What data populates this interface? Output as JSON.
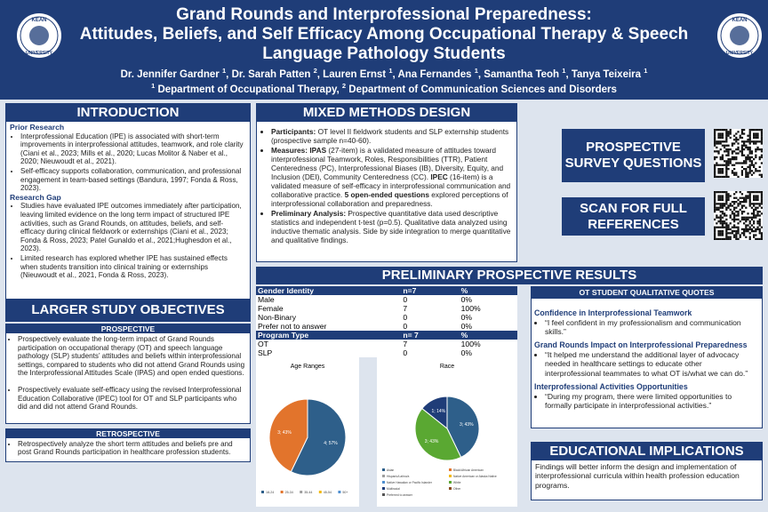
{
  "header": {
    "title_lines": [
      "Grand Rounds and Interprofessional Preparedness:",
      "Attitudes, Beliefs, and Self Efficacy Among Occupational Therapy & Speech",
      "Language Pathology Students"
    ],
    "authors": [
      {
        "name": "Dr. Jennifer Gardner",
        "aff": "1"
      },
      {
        "name": "Dr. Sarah Patten",
        "aff": "2"
      },
      {
        "name": "Lauren Ernst",
        "aff": "1"
      },
      {
        "name": "Ana Fernandes",
        "aff": "1"
      },
      {
        "name": "Samantha Teoh",
        "aff": "1"
      },
      {
        "name": "Tanya Teixeira",
        "aff": "1"
      }
    ],
    "departments": [
      {
        "num": "1",
        "name": "Department of Occupational Therapy"
      },
      {
        "num": "2",
        "name": "Department of Communication Sciences and Disorders"
      }
    ],
    "logo_top": "KEAN",
    "logo_bottom": "UNIVERSITY"
  },
  "introduction": {
    "title": "INTRODUCTION",
    "sections": [
      {
        "heading": "Prior Research",
        "bullets": [
          "Interprofessional Education (IPE) is associated with short-term improvements in interprofessional attitudes, teamwork, and role clarity (Ciani et al., 2023; Mills et al., 2020; Lucas Molitor & Naber et al., 2020; Nieuwoudt et al., 2021).",
          "Self-efficacy supports collaboration, communication, and professional engagement in team-based settings (Bandura, 1997; Fonda & Ross, 2023)."
        ]
      },
      {
        "heading": "Research Gap",
        "bullets": [
          "Studies have evaluated IPE outcomes immediately after participation, leaving limited evidence on the long term impact of structured IPE activities, such as Grand Rounds, on attitudes, beliefs, and self-efficacy during clinical fieldwork or externships (Ciani et al., 2023; Fonda & Ross, 2023;  Patel Gunaldo et al., 2021;Hughesdon et al., 2023).",
          "Limited research has explored whether IPE has sustained effects when students transition into clinical training or externships (Nieuwoudt et al., 2021, Fonda & Ross, 2023)."
        ]
      }
    ]
  },
  "objectives": {
    "title": "LARGER STUDY OBJECTIVES",
    "prospective_heading": "PROSPECTIVE",
    "prospective": [
      "Prospectively evaluate the long-term impact of Grand Rounds participation on occupational therapy (OT) and speech language pathology (SLP) students’ attitudes and beliefs within interprofessional settings, compared to students who did not attend Grand Rounds using the Interprofessional Attitudes Scale (IPAS) and open ended questions.",
      "Prospectively evaluate self-efficacy using the revised Interprofessional Education Collaborative (IPEC) tool for OT and SLP participants who did and did not attend Grand Rounds."
    ],
    "retrospective_heading": "RETROSPECTIVE",
    "retrospective": [
      "Retrospectively analyze the short term attitudes and beliefs pre and post Grand Rounds participation in healthcare profession students."
    ]
  },
  "methods": {
    "title": "MIXED METHODS DESIGN",
    "bullets": [
      [
        {
          "text": "Participants:",
          "bold": true
        },
        {
          "text": " OT level II fieldwork students and SLP externship students (prospective sample n=40-60)."
        }
      ],
      [
        {
          "text": "Measures: IPAS",
          "bold": true
        },
        {
          "text": " (27-item) is a validated measure of attitudes toward interprofessional Teamwork, Roles, Responsibilities (TTR), Patient Centeredness (PC), Interprofessional Biases (IB), Diversity, Equity, and Inclusion (DEI), Community Centeredness (CC). "
        },
        {
          "text": "IPEC",
          "bold": true
        },
        {
          "text": " (16-item) is a validated measure of self-efficacy in interprofessional communication and collaborative practice. "
        },
        {
          "text": "5 open-ended questions",
          "bold": true
        },
        {
          "text": " explored perceptions of interprofessional collaboration and preparedness."
        }
      ],
      [
        {
          "text": "Preliminary Analysis:",
          "bold": true
        },
        {
          "text": " Prospective quantitative data used descriptive statistics and independent t-test (p=0.5). Qualitative data analyzed using inductive thematic analysis. Side by side integration to merge quantitative and qualitative findings."
        }
      ]
    ]
  },
  "links": {
    "questions": "PROSPECTIVE SURVEY QUESTIONS",
    "references": "SCAN FOR FULL REFERENCES"
  },
  "results": {
    "title": "PRELIMINARY PROSPECTIVE RESULTS",
    "tables": [
      {
        "header": [
          "Gender Identity",
          "n=7",
          "%"
        ],
        "rows": [
          [
            "Male",
            "0",
            "0%"
          ],
          [
            "Female",
            "7",
            "100%"
          ],
          [
            "Non-Binary",
            "0",
            "0%"
          ],
          [
            "Prefer not to answer",
            "0",
            "0%"
          ]
        ]
      },
      {
        "header": [
          "Program Type",
          "n= 7",
          "%"
        ],
        "rows": [
          [
            "OT",
            "7",
            "100%"
          ],
          [
            "SLP",
            "0",
            "0%"
          ]
        ]
      }
    ]
  },
  "age_chart": {
    "type": "pie",
    "title": "Age Ranges",
    "categories": [
      "18-24",
      "25-34",
      "35-44",
      "45-54",
      "50+"
    ],
    "values": [
      4,
      3,
      0,
      0,
      0
    ],
    "value_labels": [
      "4; 57%",
      "3; 43%",
      null,
      null,
      null
    ],
    "colors": [
      "#2e5f8a",
      "#e2742c",
      "#9e9e9e",
      "#f2b90f",
      "#4f8fd0"
    ]
  },
  "race_chart": {
    "type": "pie",
    "title": "Race",
    "categories": [
      "Asian",
      "Black/African American",
      "Hispanic/Latino/a",
      "Native American or Alaska Native",
      "Native Hawaiian or Pacific Islander",
      "White",
      "Multiracial",
      "Other",
      "Preferred to answer"
    ],
    "values": [
      3,
      0,
      0,
      0,
      0,
      3,
      1,
      0,
      0
    ],
    "value_labels": [
      "3; 43%",
      null,
      null,
      null,
      null,
      "3; 43%",
      "1; 14%",
      null,
      null
    ],
    "colors": [
      "#2e5f8a",
      "#e2742c",
      "#9e9e9e",
      "#f2b90f",
      "#4f8fd0",
      "#5aa832",
      "#1f3d78",
      "#8a4b1f",
      "#555555"
    ]
  },
  "quotes": {
    "title": "OT STUDENT QUALITATIVE QUOTES",
    "groups": [
      {
        "heading": "Confidence in Interprofessional Teamwork",
        "quotes": [
          "“I feel confident in my professionalism and communication skills.”"
        ]
      },
      {
        "heading": "Grand Rounds Impact on Interprofessional Preparedness",
        "quotes": [
          "“It helped me understand the additional layer of advocacy needed in healthcare settings to educate other interprofessional teammates to what OT is/what we can do.”"
        ]
      },
      {
        "heading": "Interprofessional Activities Opportunities",
        "quotes": [
          "“During my program, there were limited opportunities to formally participate in interprofessional activities.”"
        ]
      }
    ]
  },
  "implications": {
    "title": "EDUCATIONAL IMPLICATIONS",
    "text": "Findings  will  better inform the design and implementation of interprofessional curricula within health profession education programs."
  }
}
